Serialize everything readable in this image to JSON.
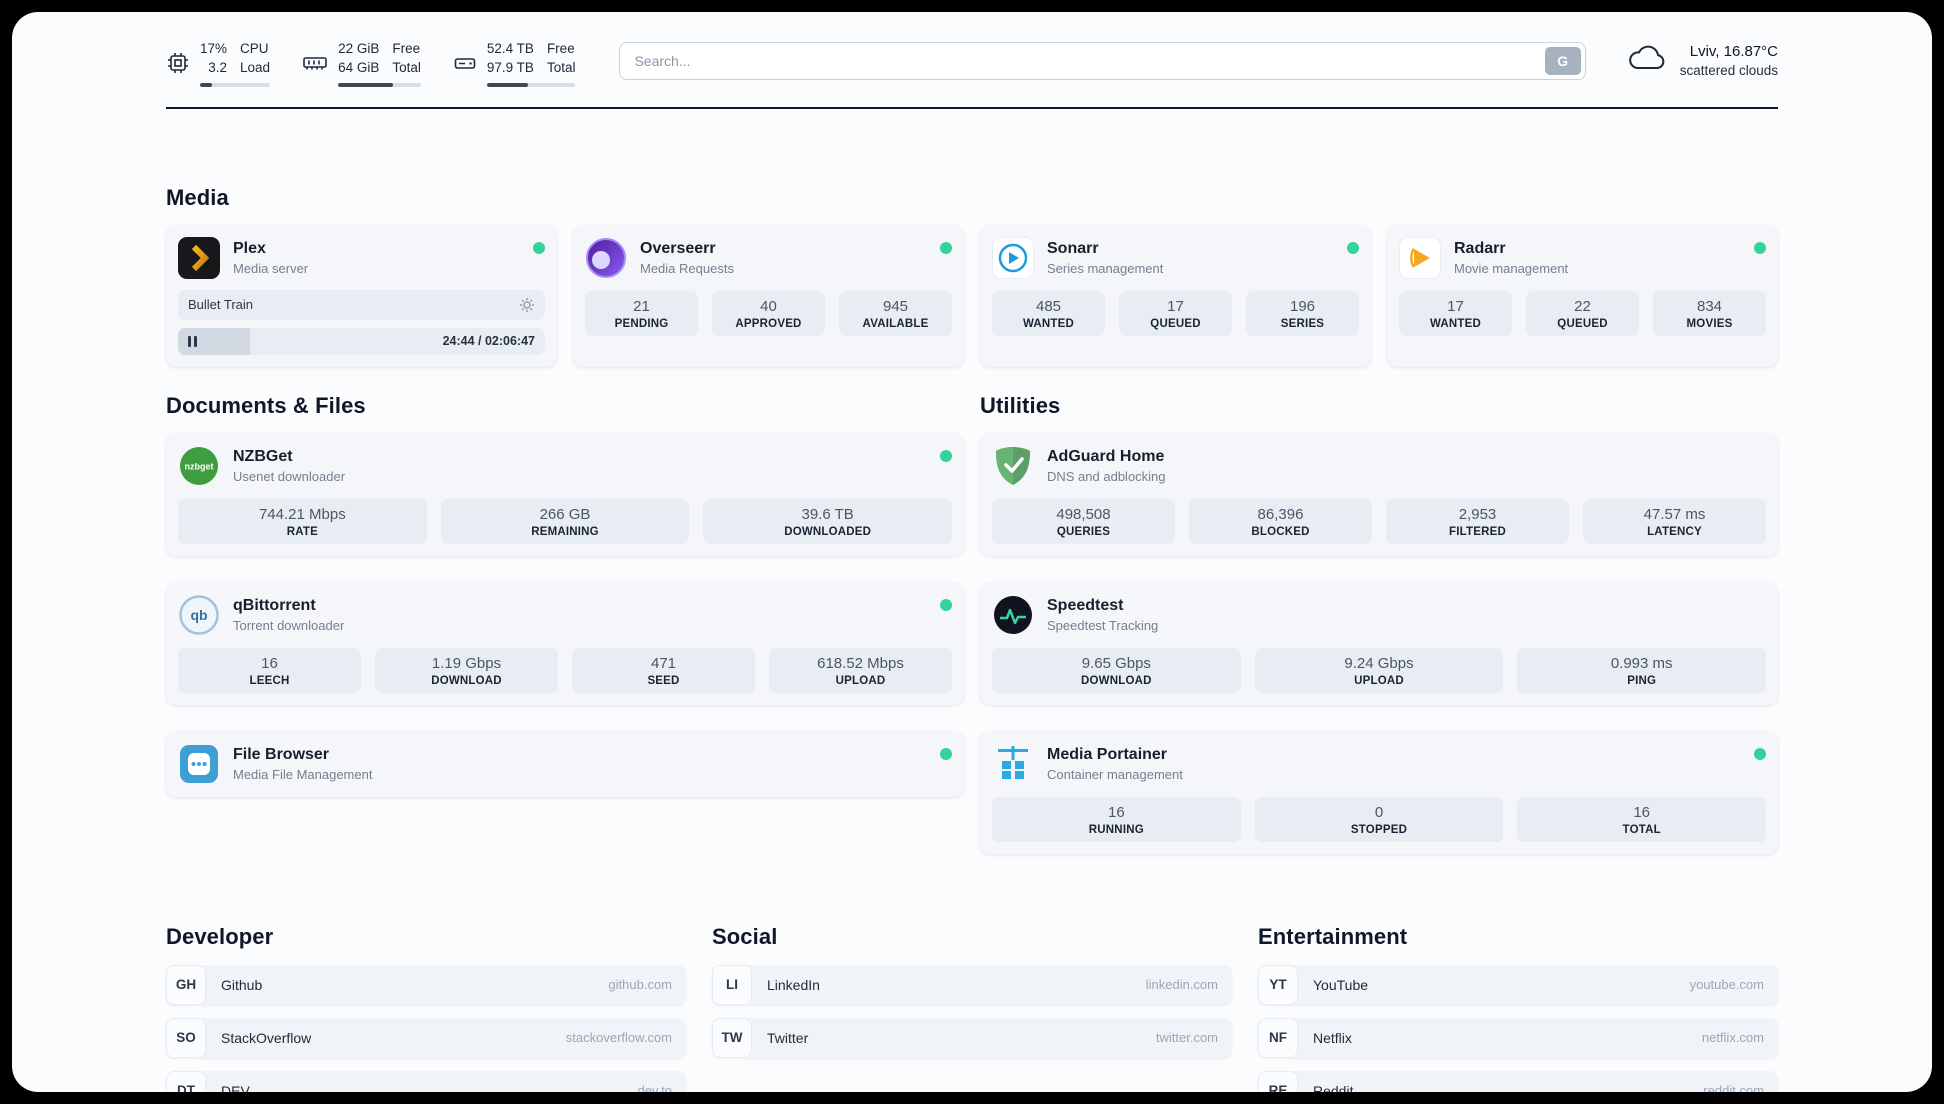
{
  "theme": {
    "status_online": "#34d399",
    "bar_fill": "#3f4956",
    "page_bg": "#fbfcfe"
  },
  "header": {
    "widgets": [
      {
        "icon": "cpu-icon",
        "values": [
          "17%",
          "3.2"
        ],
        "labels": [
          "CPU",
          "Load"
        ],
        "bar_percent": 17
      },
      {
        "icon": "memory-icon",
        "values": [
          "22 GiB",
          "64 GiB"
        ],
        "labels": [
          "Free",
          "Total"
        ],
        "bar_percent": 66
      },
      {
        "icon": "disk-icon",
        "values": [
          "52.4 TB",
          "97.9 TB"
        ],
        "labels": [
          "Free",
          "Total"
        ],
        "bar_percent": 46
      }
    ],
    "search": {
      "placeholder": "Search...",
      "button_label": "G"
    },
    "weather": {
      "icon": "cloud-icon",
      "location": "Lviv, 16.87°C",
      "condition": "scattered clouds"
    }
  },
  "sections": {
    "media": {
      "title": "Media",
      "services": [
        {
          "icon": "plex-icon",
          "name": "Plex",
          "subtitle": "Media server",
          "online": true,
          "player": {
            "track": "Bullet Train",
            "time": "24:44 / 02:06:47",
            "progress_percent": 19.5
          }
        },
        {
          "icon": "overseerr-icon",
          "name": "Overseerr",
          "subtitle": "Media Requests",
          "online": true,
          "stats": [
            {
              "value": "21",
              "label": "PENDING"
            },
            {
              "value": "40",
              "label": "APPROVED"
            },
            {
              "value": "945",
              "label": "AVAILABLE"
            }
          ]
        },
        {
          "icon": "sonarr-icon",
          "name": "Sonarr",
          "subtitle": "Series management",
          "online": true,
          "stats": [
            {
              "value": "485",
              "label": "WANTED"
            },
            {
              "value": "17",
              "label": "QUEUED"
            },
            {
              "value": "196",
              "label": "SERIES"
            }
          ]
        },
        {
          "icon": "radarr-icon",
          "name": "Radarr",
          "subtitle": "Movie management",
          "online": true,
          "stats": [
            {
              "value": "17",
              "label": "WANTED"
            },
            {
              "value": "22",
              "label": "QUEUED"
            },
            {
              "value": "834",
              "label": "MOVIES"
            }
          ]
        }
      ]
    },
    "documents": {
      "title": "Documents & Files",
      "services": [
        {
          "icon": "nzbget-icon",
          "name": "NZBGet",
          "subtitle": "Usenet downloader",
          "online": true,
          "stats": [
            {
              "value": "744.21 Mbps",
              "label": "RATE"
            },
            {
              "value": "266 GB",
              "label": "REMAINING"
            },
            {
              "value": "39.6 TB",
              "label": "DOWNLOADED"
            }
          ]
        },
        {
          "icon": "qbittorrent-icon",
          "name": "qBittorrent",
          "subtitle": "Torrent downloader",
          "online": true,
          "stats": [
            {
              "value": "16",
              "label": "LEECH"
            },
            {
              "value": "1.19 Gbps",
              "label": "DOWNLOAD"
            },
            {
              "value": "471",
              "label": "SEED"
            },
            {
              "value": "618.52 Mbps",
              "label": "UPLOAD"
            }
          ]
        },
        {
          "icon": "filebrowser-icon",
          "name": "File Browser",
          "subtitle": "Media File Management",
          "online": true
        }
      ]
    },
    "utilities": {
      "title": "Utilities",
      "services": [
        {
          "icon": "adguard-icon",
          "name": "AdGuard Home",
          "subtitle": "DNS and adblocking",
          "stats": [
            {
              "value": "498,508",
              "label": "QUERIES"
            },
            {
              "value": "86,396",
              "label": "BLOCKED"
            },
            {
              "value": "2,953",
              "label": "FILTERED"
            },
            {
              "value": "47.57 ms",
              "label": "LATENCY"
            }
          ]
        },
        {
          "icon": "speedtest-icon",
          "name": "Speedtest",
          "subtitle": "Speedtest Tracking",
          "stats": [
            {
              "value": "9.65 Gbps",
              "label": "DOWNLOAD"
            },
            {
              "value": "9.24 Gbps",
              "label": "UPLOAD"
            },
            {
              "value": "0.993 ms",
              "label": "PING"
            }
          ]
        },
        {
          "icon": "portainer-icon",
          "name": "Media Portainer",
          "subtitle": "Container management",
          "online": true,
          "stats": [
            {
              "value": "16",
              "label": "RUNNING"
            },
            {
              "value": "0",
              "label": "STOPPED"
            },
            {
              "value": "16",
              "label": "TOTAL"
            }
          ]
        }
      ]
    },
    "bookmarks": [
      {
        "title": "Developer",
        "items": [
          {
            "abbr": "GH",
            "name": "Github",
            "url": "github.com"
          },
          {
            "abbr": "SO",
            "name": "StackOverflow",
            "url": "stackoverflow.com"
          },
          {
            "abbr": "DT",
            "name": "DEV",
            "url": "dev.to"
          }
        ]
      },
      {
        "title": "Social",
        "items": [
          {
            "abbr": "LI",
            "name": "LinkedIn",
            "url": "linkedin.com"
          },
          {
            "abbr": "TW",
            "name": "Twitter",
            "url": "twitter.com"
          }
        ]
      },
      {
        "title": "Entertainment",
        "items": [
          {
            "abbr": "YT",
            "name": "YouTube",
            "url": "youtube.com"
          },
          {
            "abbr": "NF",
            "name": "Netflix",
            "url": "netflix.com"
          },
          {
            "abbr": "RE",
            "name": "Reddit",
            "url": "reddit.com"
          }
        ]
      }
    ]
  }
}
